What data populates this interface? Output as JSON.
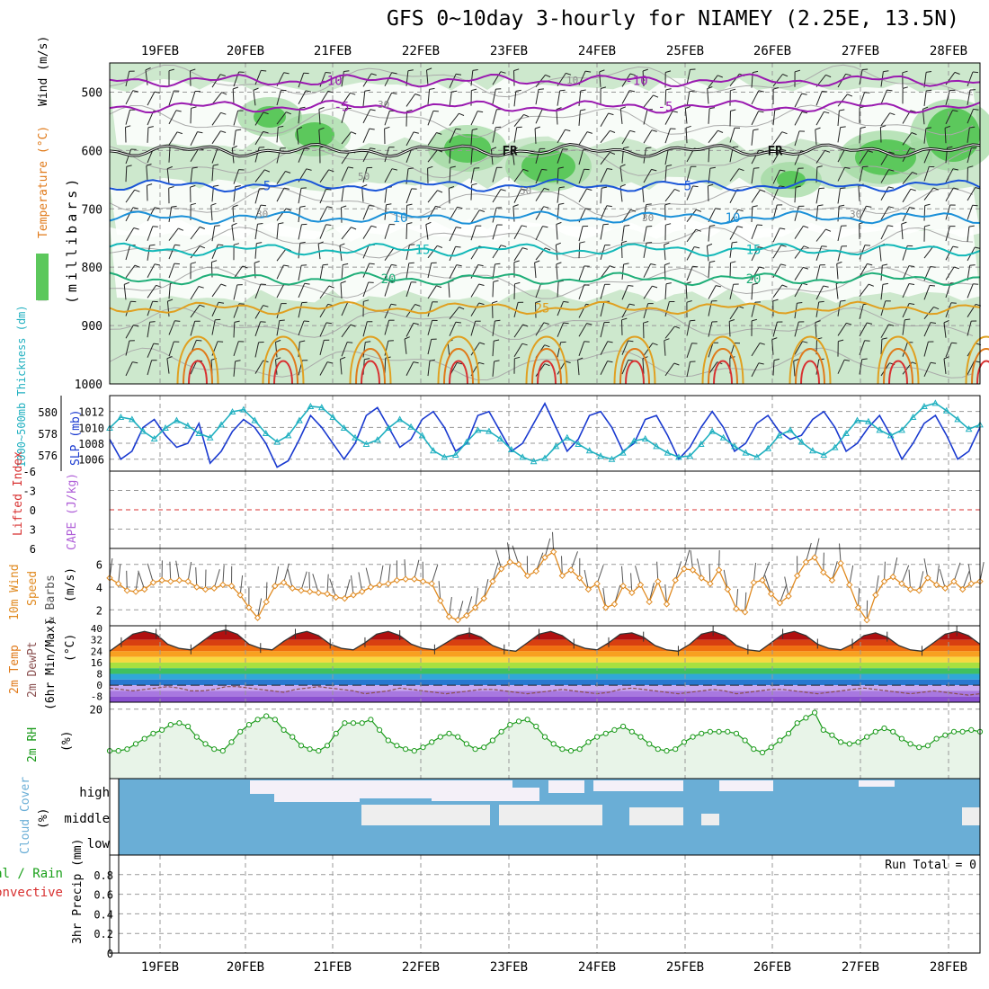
{
  "title": "GFS 0~10day 3-hourly for NIAMEY (2.25E, 13.5N)",
  "colors": {
    "purple": "#9a1ab0",
    "blue": "#1a55d8",
    "lightblue": "#1a90d8",
    "cyan": "#12b8b8",
    "green": "#1fae78",
    "orange": "#e0a020",
    "darkorange": "#e07a1a",
    "red": "#d83030",
    "rh_fill": "#cde8cd",
    "rh_mid": "#9ed89e",
    "rh_high": "#5cc85c",
    "cloud": "#6aaed6",
    "cloud_clear": "#eeeeee",
    "rh2m_fill": "#e8f4e8",
    "rh2m_line": "#1a9a1a",
    "slp": "#1a3ad0",
    "thickness": "#20b0c0",
    "wind": "#e08a20"
  },
  "chart_data": [
    {
      "panel": "upper-air",
      "type": "contour",
      "title": "GFS 0~10day 3-hourly for NIAMEY (2.25E, 13.5N)",
      "x_labels": [
        "19FEB",
        "20FEB",
        "21FEB",
        "22FEB",
        "23FEB",
        "24FEB",
        "25FEB",
        "26FEB",
        "27FEB",
        "28FEB"
      ],
      "ylabel_parts": [
        "RH (%)",
        "Temperature (°C)",
        "Wind (m/s)"
      ],
      "ylabel_units": "(millibars)",
      "y_ticks": [
        500,
        600,
        700,
        800,
        900,
        1000
      ],
      "ylim": [
        450,
        1000
      ],
      "temperature_contours": [
        {
          "value": -10,
          "label": "-10",
          "pressure": 480
        },
        {
          "value": -5,
          "label": "-5",
          "pressure": 525
        },
        {
          "value": 0,
          "label": "FR",
          "pressure": 600
        },
        {
          "value": 5,
          "label": "5",
          "pressure": 660
        },
        {
          "value": 10,
          "label": "10",
          "pressure": 715
        },
        {
          "value": 15,
          "label": "15",
          "pressure": 770
        },
        {
          "value": 20,
          "label": "20",
          "pressure": 820
        },
        {
          "value": 25,
          "label": "25",
          "pressure": 870
        }
      ],
      "rh_contour_labels": [
        "10",
        "30",
        "50"
      ]
    },
    {
      "panel": "thickness-slp",
      "type": "line",
      "left_axis_label": "1000~500mb Thickness (dm)",
      "left_ticks": [
        576,
        578,
        580
      ],
      "left_ylim": [
        574.5,
        581.5
      ],
      "right_axis_label": "SLP (mb)",
      "right_ticks": [
        1006,
        1008,
        1010,
        1012
      ],
      "right_ylim": [
        1004.5,
        1014
      ],
      "series": [
        {
          "name": "SLP (mb)",
          "axis": "right",
          "values": [
            1008.5,
            1006,
            1007,
            1010,
            1011,
            1009,
            1007.5,
            1008,
            1010.5,
            1005.5,
            1007,
            1009.5,
            1011,
            1010,
            1008,
            1005,
            1005.8,
            1008.5,
            1011.5,
            1010,
            1008,
            1006,
            1008,
            1011.5,
            1012.5,
            1010,
            1007.5,
            1008.5,
            1011,
            1012,
            1010,
            1007,
            1008,
            1011.5,
            1012,
            1009.5,
            1007,
            1008,
            1010.5,
            1013,
            1010,
            1007,
            1008.5,
            1011.5,
            1012,
            1010,
            1007,
            1008,
            1011,
            1011.5,
            1009,
            1006,
            1007.5,
            1010,
            1012,
            1010,
            1007,
            1008,
            1010.5,
            1011.5,
            1009.5,
            1008.5,
            1009,
            1011,
            1012,
            1010,
            1007,
            1008,
            1010,
            1011.5,
            1009,
            1006,
            1008,
            1010.5,
            1011.5,
            1009,
            1006,
            1007,
            1010
          ]
        },
        {
          "name": "1000~500mb Thickness (dm)",
          "axis": "left",
          "values": [
            578.5,
            579.5,
            579.3,
            578.2,
            577.5,
            578.5,
            579.2,
            578.7,
            578.0,
            577.6,
            578.8,
            580.0,
            580.2,
            579.2,
            578.0,
            577.2,
            577.8,
            579.2,
            580.5,
            580.4,
            579.5,
            578.5,
            577.6,
            577.0,
            577.4,
            578.5,
            579.3,
            578.6,
            577.8,
            576.4,
            575.8,
            576.0,
            577.2,
            578.3,
            578.2,
            577.5,
            576.5,
            575.8,
            575.4,
            575.7,
            576.8,
            577.6,
            577.0,
            576.4,
            575.9,
            575.6,
            576.2,
            577.3,
            577.5,
            576.8,
            576.2,
            575.8,
            575.9,
            577.0,
            578.2,
            577.6,
            576.8,
            576.2,
            575.8,
            576.6,
            577.8,
            578.3,
            577.2,
            576.4,
            576.0,
            576.7,
            578.0,
            579.2,
            579.1,
            578.3,
            577.8,
            578.3,
            579.5,
            580.5,
            580.8,
            580.1,
            579.3,
            578.4,
            578.8
          ]
        }
      ]
    },
    {
      "panel": "lifted-index-cape",
      "type": "line",
      "left_axis_label": "Lifted Index",
      "right_axis_label": "CAPE (J/kg)",
      "y_ticks": [
        "-6",
        "-3",
        "0",
        "3",
        "6"
      ],
      "ylim": [
        -6,
        6
      ]
    },
    {
      "panel": "wind10m",
      "type": "line",
      "axis_label": "10m Wind Speed (m/s) & Barbs",
      "y_ticks": [
        2,
        4,
        6
      ],
      "ylim": [
        0.6,
        7.4
      ],
      "series": [
        {
          "name": "10m Wind Speed",
          "values": [
            4.8,
            4.3,
            3.7,
            3.6,
            3.8,
            4.4,
            4.6,
            4.5,
            4.6,
            4.5,
            4.0,
            3.8,
            3.9,
            4.2,
            4.1,
            3.3,
            2.2,
            1.3,
            2.7,
            4.1,
            4.4,
            3.9,
            3.7,
            3.6,
            3.5,
            3.4,
            3.1,
            3.0,
            3.3,
            3.6,
            4.0,
            4.2,
            4.3,
            4.6,
            4.7,
            4.7,
            4.5,
            4.3,
            2.8,
            1.4,
            1.1,
            1.5,
            2.2,
            3.0,
            4.5,
            5.6,
            6.2,
            6.0,
            5.0,
            5.4,
            6.6,
            7.1,
            5.0,
            5.5,
            4.8,
            3.8,
            4.3,
            2.2,
            2.5,
            4.1,
            3.5,
            4.2,
            2.7,
            4.5,
            2.5,
            4.6,
            5.6,
            5.5,
            4.8,
            4.3,
            5.5,
            3.8,
            2.1,
            1.8,
            4.4,
            4.6,
            3.4,
            2.6,
            3.2,
            5.0,
            6.2,
            6.6,
            5.3,
            4.6,
            6.1,
            4.2,
            2.2,
            1.1,
            3.3,
            4.5,
            4.9,
            4.3,
            3.8,
            3.7,
            4.8,
            4.2,
            3.9,
            4.5,
            3.8,
            4.3,
            4.5
          ]
        }
      ]
    },
    {
      "panel": "temperature-2m",
      "type": "area",
      "axis_label": "2m Temp 2m DewPt (6hr Min/Max) (°C)",
      "y_ticks": [
        -8,
        0,
        8,
        16,
        24,
        32,
        40
      ],
      "ylim": [
        -12,
        42
      ],
      "series": [
        {
          "name": "2m Temp",
          "values": [
            24,
            30,
            36,
            38,
            36,
            29,
            26,
            25,
            31,
            37,
            39,
            36,
            29,
            26,
            25,
            31,
            36,
            38,
            35,
            29,
            26,
            25,
            30,
            36,
            38,
            35,
            29,
            26,
            25,
            30,
            35,
            37,
            34,
            28,
            25,
            24,
            30,
            36,
            38,
            35,
            29,
            26,
            25,
            30,
            36,
            37,
            34,
            28,
            25,
            24,
            29,
            36,
            38,
            35,
            28,
            25,
            24,
            30,
            36,
            38,
            35,
            29,
            26,
            25,
            29,
            35,
            37,
            34,
            28,
            25,
            24,
            30,
            36,
            38,
            35,
            29
          ]
        },
        {
          "name": "2m DewPt",
          "values": [
            -2,
            -3,
            -4,
            -3,
            -2,
            -1,
            -2,
            -4,
            -4,
            -3,
            -1,
            -1,
            -2,
            -3,
            -4,
            -5,
            -3,
            -2,
            -1,
            -2,
            -3,
            -4,
            -6,
            -5,
            -4,
            -2,
            -3,
            -4,
            -5,
            -6,
            -5,
            -4,
            -3,
            -3,
            -4,
            -5,
            -6,
            -5,
            -4,
            -3,
            -4,
            -5,
            -6,
            -5,
            -3,
            -2,
            -3,
            -4,
            -5,
            -6,
            -5,
            -4,
            -3,
            -4,
            -6,
            -5,
            -4,
            -3,
            -3,
            -4,
            -5,
            -6,
            -5,
            -4,
            -3,
            -2,
            -3,
            -4,
            -5,
            -6,
            -5,
            -4,
            -5,
            -6,
            -7,
            -6
          ]
        }
      ]
    },
    {
      "panel": "rh-2m",
      "type": "line",
      "axis_label": "2m RH (%)",
      "y_ticks": [
        20
      ],
      "ylim": [
        0,
        22
      ],
      "series": [
        {
          "name": "2m RH",
          "values": [
            8,
            8,
            8.5,
            10,
            11.5,
            13,
            14,
            15.5,
            16,
            15,
            12,
            10,
            8.5,
            8,
            10.5,
            13.5,
            15.5,
            17,
            18,
            17,
            14,
            12,
            9.5,
            8.5,
            8,
            9.5,
            13,
            16,
            16,
            16,
            17,
            14,
            11,
            9.5,
            8.5,
            8,
            9,
            10.5,
            12,
            13,
            12,
            10,
            8.5,
            9,
            11,
            13.5,
            15.5,
            16.5,
            17,
            15,
            12,
            10,
            8.5,
            8,
            8.5,
            10.5,
            12,
            13,
            14,
            15,
            13.5,
            12,
            10,
            8.5,
            8,
            8.5,
            10.5,
            12,
            13,
            13.5,
            13.5,
            13.5,
            13,
            11,
            8.5,
            7.5,
            9,
            11,
            13,
            16,
            17.5,
            19,
            14,
            12.5,
            10.5,
            10,
            10.5,
            12,
            13.5,
            14.5,
            13.5,
            11.5,
            10,
            9,
            9.5,
            11.5,
            12.5,
            13.5,
            13.5,
            14,
            13.5
          ]
        }
      ]
    },
    {
      "panel": "cloud-cover",
      "type": "heatmap",
      "axis_label": "Cloud Cover (%)",
      "levels": [
        "high",
        "middle",
        "low"
      ]
    },
    {
      "panel": "precip",
      "type": "bar",
      "left_axis_labels": [
        "Total / Rain",
        "Convective"
      ],
      "axis_label": "3hr Precip (mm)",
      "y_ticks": [
        "0",
        "0.2",
        "0.4",
        "0.6",
        "0.8"
      ],
      "ylim": [
        0,
        1
      ],
      "annotation": "Run Total = 0"
    }
  ]
}
